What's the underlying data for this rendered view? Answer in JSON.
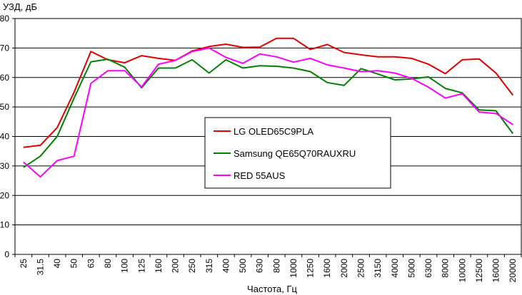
{
  "chart_data": {
    "type": "line",
    "ylabel": "УЗД, дБ",
    "xlabel": "Частота, Гц",
    "ylim": [
      0,
      80
    ],
    "yticks": [
      0,
      10,
      20,
      30,
      40,
      50,
      60,
      70,
      80
    ],
    "grid": true,
    "legend_position": "center",
    "categories": [
      "25",
      "31.5",
      "40",
      "50",
      "63",
      "80",
      "100",
      "125",
      "160",
      "200",
      "250",
      "315",
      "400",
      "500",
      "630",
      "800",
      "1000",
      "1250",
      "1600",
      "2000",
      "2500",
      "3150",
      "4000",
      "5000",
      "6300",
      "8000",
      "10000",
      "12500",
      "16000",
      "20000"
    ],
    "series": [
      {
        "name": "LG OLED65C9PLA",
        "color": "#e00000",
        "values": [
          36.3,
          37,
          43,
          55,
          68.8,
          66,
          65,
          67.4,
          66.5,
          65.8,
          69,
          70.5,
          71.3,
          70.2,
          70.3,
          73.3,
          73.3,
          69.5,
          71.2,
          68.5,
          67.7,
          67,
          67,
          66.5,
          64.5,
          61.3,
          66,
          66.3,
          61.5,
          54
        ]
      },
      {
        "name": "Samsung QE65Q70RAUXRU",
        "color": "#008000",
        "values": [
          29.5,
          33.3,
          40,
          53,
          65.3,
          66.2,
          63.5,
          56.5,
          63.2,
          63.2,
          66,
          61.5,
          66,
          63.2,
          64,
          63.8,
          63.2,
          62,
          58.3,
          57.3,
          63,
          61.2,
          59.2,
          59.5,
          60.2,
          56.3,
          54.8,
          49,
          48.7,
          41
        ]
      },
      {
        "name": "RED 55AUS",
        "color": "#ff00ff",
        "values": [
          31.3,
          26.3,
          31.8,
          33.3,
          58,
          62.3,
          62.3,
          56.8,
          64.5,
          65.8,
          68.8,
          70,
          66.8,
          64.8,
          68,
          67,
          65.2,
          66.5,
          64.3,
          63.2,
          62,
          62.3,
          61.5,
          59.7,
          56.7,
          53,
          54.5,
          48.3,
          47.8,
          44
        ]
      }
    ]
  }
}
